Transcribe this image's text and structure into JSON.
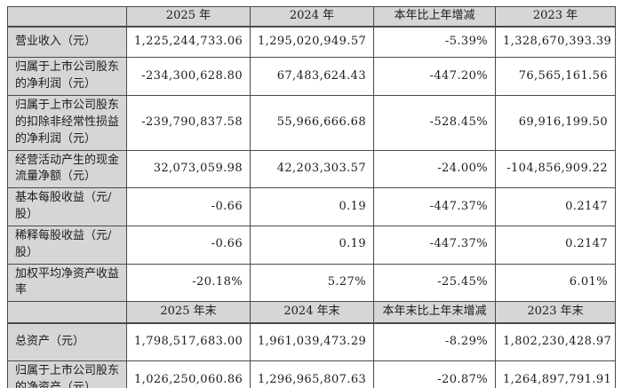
{
  "colors": {
    "header_bg": "#d6d6d6",
    "label_bg": "#d6d6d6",
    "grid_border": "#4a4a4a",
    "text": "#1c1c1c",
    "cell_bg": "#ffffff"
  },
  "rows": [
    {
      "cells": [
        "",
        "2025 年",
        "2024 年",
        "本年比上年增减",
        "2023 年"
      ]
    },
    {
      "cells": [
        "营业收入（元）",
        "1,225,244,733.06",
        "1,295,020,949.57",
        "-5.39%",
        "1,328,670,393.39"
      ]
    },
    {
      "cells": [
        "归属于上市公司股东的净利润（元）",
        "-234,300,628.80",
        "67,483,624.43",
        "-447.20%",
        "76,565,161.56"
      ]
    },
    {
      "cells": [
        "归属于上市公司股东的扣除非经常性损益的净利润（元）",
        "-239,790,837.58",
        "55,966,666.68",
        "-528.45%",
        "69,916,199.50"
      ]
    },
    {
      "cells": [
        "经营活动产生的现金流量净额（元）",
        "32,073,059.98",
        "42,203,303.57",
        "-24.00%",
        "-104,856,909.22"
      ]
    },
    {
      "cells": [
        "基本每股收益（元/股）",
        "-0.66",
        "0.19",
        "-447.37%",
        "0.2147"
      ]
    },
    {
      "cells": [
        "稀释每股收益（元/股）",
        "-0.66",
        "0.19",
        "-447.37%",
        "0.2147"
      ]
    },
    {
      "cells": [
        "加权平均净资产收益率",
        "-20.18%",
        "5.27%",
        "-25.45%",
        "6.01%"
      ]
    },
    {
      "cells": [
        "",
        "2025 年末",
        "2024 年末",
        "本年末比上年末增减",
        "2023 年末"
      ]
    },
    {
      "cells": [
        "总资产（元）",
        "1,798,517,683.00",
        "1,961,039,473.29",
        "-8.29%",
        "1,802,230,428.97"
      ]
    },
    {
      "cells": [
        "归属于上市公司股东的净资产（元）",
        "1,026,250,060.86",
        "1,296,965,807.63",
        "-20.87%",
        "1,264,897,791.91"
      ]
    }
  ]
}
